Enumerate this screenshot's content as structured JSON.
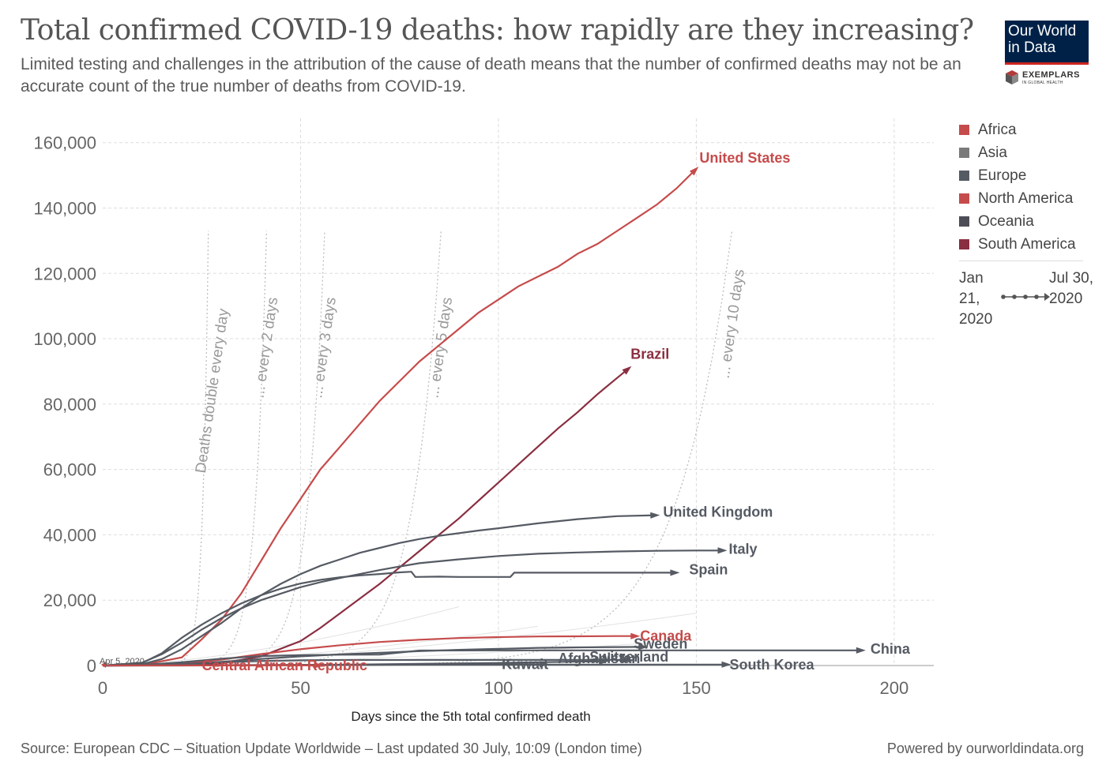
{
  "header": {
    "title": "Total confirmed COVID-19 deaths: how rapidly are they increasing?",
    "subtitle": "Limited testing and challenges in the attribution of the cause of death means that the number of confirmed deaths may not be an accurate count of the true number of deaths from COVID-19."
  },
  "logo": {
    "text": "Our World in Data",
    "exemplars": "EXEMPLARS",
    "exemplars_sub": "IN GLOBAL HEALTH",
    "bg_color": "#002147",
    "accent_color": "#ce261e"
  },
  "legend": {
    "items": [
      {
        "label": "Africa",
        "color": "#c64b4b"
      },
      {
        "label": "Asia",
        "color": "#7a7a7a"
      },
      {
        "label": "Europe",
        "color": "#555a63"
      },
      {
        "label": "North America",
        "color": "#c64b4b"
      },
      {
        "label": "Oceania",
        "color": "#4d4d57"
      },
      {
        "label": "South America",
        "color": "#8a2e41"
      }
    ]
  },
  "timeline": {
    "start_label": "Jan 21, 2020",
    "end_label": "Jul 30, 2020"
  },
  "footer": {
    "source": "Source: European CDC – Situation Update Worldwide – Last updated 30 July, 10:09 (London time)",
    "powered": "Powered by ourworldindata.org"
  },
  "chart_data": {
    "type": "line",
    "xlabel": "Days since the 5th total confirmed death",
    "ylabel": "",
    "xlim": [
      0,
      210
    ],
    "ylim": [
      0,
      165000
    ],
    "xticks": [
      0,
      50,
      100,
      150,
      200
    ],
    "xtick_labels": [
      "0",
      "50",
      "100",
      "150",
      "200"
    ],
    "yticks": [
      0,
      20000,
      40000,
      60000,
      80000,
      100000,
      120000,
      140000,
      160000
    ],
    "ytick_labels": [
      "0",
      "20,000",
      "40,000",
      "60,000",
      "80,000",
      "100,000",
      "120,000",
      "140,000",
      "160,000"
    ],
    "grid": true,
    "annotation_start": "Apr 5, 2020",
    "reference_lines": [
      {
        "label": "Deaths double every day",
        "doubling_days": 1
      },
      {
        "label": "... every 2 days",
        "doubling_days": 2
      },
      {
        "label": "... every 3 days",
        "doubling_days": 3
      },
      {
        "label": "... every 5 days",
        "doubling_days": 5
      },
      {
        "label": "... every 10 days",
        "doubling_days": 10
      }
    ],
    "series": [
      {
        "name": "United States",
        "continent": "North America",
        "color": "#c64b4b",
        "label_bold": true,
        "x": [
          0,
          10,
          20,
          25,
          30,
          35,
          40,
          45,
          50,
          55,
          60,
          65,
          70,
          75,
          80,
          85,
          90,
          95,
          100,
          105,
          110,
          115,
          120,
          125,
          130,
          135,
          140,
          145,
          150
        ],
        "y": [
          5,
          200,
          2500,
          8000,
          14000,
          22000,
          32000,
          42000,
          51000,
          60000,
          67000,
          74000,
          81000,
          87000,
          93000,
          98000,
          103000,
          108000,
          112000,
          116000,
          119000,
          122000,
          126000,
          129000,
          133000,
          137000,
          141000,
          146000,
          152000
        ]
      },
      {
        "name": "Brazil",
        "continent": "South America",
        "color": "#8a2e41",
        "label_bold": true,
        "x": [
          0,
          10,
          20,
          30,
          40,
          50,
          55,
          60,
          65,
          70,
          75,
          80,
          85,
          90,
          95,
          100,
          105,
          110,
          115,
          120,
          125,
          130,
          133
        ],
        "y": [
          5,
          30,
          150,
          700,
          2800,
          7500,
          11500,
          16000,
          20500,
          25000,
          30000,
          35000,
          40000,
          45000,
          50500,
          56000,
          61500,
          67000,
          72500,
          77500,
          83000,
          88000,
          91000
        ]
      },
      {
        "name": "United Kingdom",
        "continent": "Europe",
        "color": "#555a63",
        "label_bold": true,
        "x": [
          0,
          10,
          15,
          20,
          25,
          30,
          35,
          40,
          45,
          50,
          55,
          60,
          65,
          70,
          75,
          80,
          85,
          90,
          95,
          100,
          110,
          120,
          130,
          140
        ],
        "y": [
          5,
          400,
          2000,
          5000,
          9000,
          13000,
          17500,
          21500,
          25000,
          28000,
          30500,
          32500,
          34500,
          36000,
          37500,
          38700,
          39700,
          40500,
          41300,
          42000,
          43500,
          44800,
          45700,
          46000
        ]
      },
      {
        "name": "Italy",
        "continent": "Europe",
        "color": "#555a63",
        "label_bold": true,
        "x": [
          0,
          10,
          15,
          20,
          25,
          30,
          35,
          40,
          45,
          50,
          55,
          60,
          65,
          70,
          75,
          80,
          90,
          100,
          110,
          120,
          130,
          140,
          150,
          157
        ],
        "y": [
          5,
          900,
          3500,
          7000,
          11000,
          14500,
          17500,
          20000,
          22000,
          24000,
          25500,
          26800,
          28000,
          29200,
          30300,
          31300,
          32500,
          33500,
          34200,
          34600,
          34900,
          35100,
          35200,
          35200
        ]
      },
      {
        "name": "Spain",
        "continent": "Europe",
        "color": "#555a63",
        "label_bold": true,
        "x": [
          0,
          10,
          15,
          20,
          25,
          30,
          35,
          40,
          45,
          50,
          55,
          60,
          65,
          70,
          75,
          78,
          79,
          85,
          90,
          100,
          103,
          104,
          110,
          120,
          130,
          140,
          145
        ],
        "y": [
          5,
          800,
          3800,
          8500,
          12500,
          16000,
          19000,
          21500,
          23500,
          25100,
          26200,
          27000,
          27600,
          28000,
          28500,
          28700,
          27100,
          27200,
          27100,
          27100,
          27100,
          28400,
          28400,
          28400,
          28400,
          28400,
          28400
        ]
      },
      {
        "name": "Canada",
        "continent": "North America",
        "color": "#c64b4b",
        "label_bold": true,
        "x": [
          0,
          10,
          20,
          30,
          40,
          50,
          60,
          70,
          80,
          90,
          100,
          110,
          120,
          130,
          135
        ],
        "y": [
          5,
          80,
          500,
          1800,
          3500,
          5000,
          6200,
          7200,
          7900,
          8400,
          8700,
          8900,
          8950,
          9000,
          9000
        ]
      },
      {
        "name": "Sweden",
        "continent": "Europe",
        "color": "#555a63",
        "label_bold": true,
        "x": [
          0,
          10,
          20,
          30,
          40,
          50,
          60,
          70,
          80,
          90,
          100,
          110,
          120,
          130,
          137
        ],
        "y": [
          5,
          60,
          350,
          1100,
          2000,
          2800,
          3400,
          3900,
          4400,
          4800,
          5100,
          5400,
          5550,
          5650,
          5700
        ]
      },
      {
        "name": "China",
        "continent": "Asia",
        "color": "#555a63",
        "label_bold": true,
        "x": [
          0,
          10,
          20,
          30,
          40,
          50,
          60,
          70,
          80,
          100,
          120,
          140,
          160,
          180,
          192
        ],
        "y": [
          5,
          200,
          1000,
          2100,
          2900,
          3200,
          3300,
          3330,
          4600,
          4634,
          4634,
          4634,
          4634,
          4634,
          4634
        ]
      },
      {
        "name": "Switzerland",
        "continent": "Europe",
        "color": "#555a63",
        "label_bold": true,
        "x": [
          0,
          10,
          20,
          30,
          40,
          50,
          60,
          80,
          100,
          120,
          133
        ],
        "y": [
          5,
          80,
          450,
          1000,
          1400,
          1600,
          1700,
          1720,
          1720,
          1730,
          1740
        ]
      },
      {
        "name": "South Korea",
        "continent": "Asia",
        "color": "#555a63",
        "label_bold": true,
        "x": [
          0,
          20,
          40,
          60,
          80,
          100,
          120,
          140,
          158
        ],
        "y": [
          5,
          80,
          180,
          240,
          260,
          270,
          280,
          290,
          300
        ]
      },
      {
        "name": "Afghanistan",
        "continent": "Asia",
        "color": "#555a63",
        "label_bold": true,
        "x": [
          0,
          20,
          40,
          60,
          80,
          100,
          120,
          127
        ],
        "y": [
          5,
          40,
          100,
          250,
          500,
          800,
          1200,
          1250
        ]
      },
      {
        "name": "Kuwait",
        "continent": "Asia",
        "color": "#555a63",
        "label_bold": true,
        "x": [
          0,
          20,
          40,
          60,
          80,
          100,
          112
        ],
        "y": [
          5,
          10,
          60,
          150,
          280,
          380,
          420
        ]
      },
      {
        "name": "Central African Republic",
        "continent": "Africa",
        "color": "#c64b4b",
        "label_bold": true,
        "x": [
          0,
          20,
          40,
          55
        ],
        "y": [
          5,
          20,
          50,
          60
        ]
      }
    ]
  }
}
